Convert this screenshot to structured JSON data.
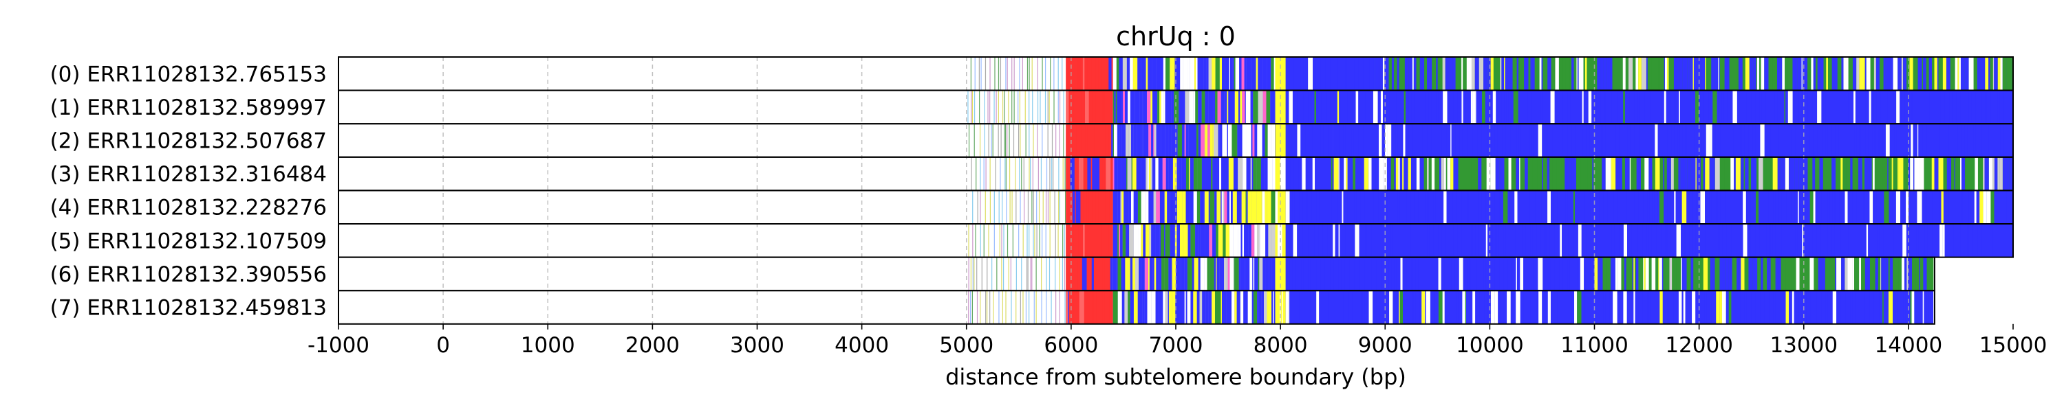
{
  "chart_data": {
    "type": "heatmap",
    "title": "chrUq : 0",
    "xlabel": "distance from subtelomere boundary (bp)",
    "ylabel": "",
    "xlim": [
      -1000,
      15000
    ],
    "xticks": [
      -1000,
      0,
      1000,
      2000,
      3000,
      4000,
      5000,
      6000,
      7000,
      8000,
      9000,
      10000,
      11000,
      12000,
      13000,
      14000,
      15000
    ],
    "grid": "vertical dashed",
    "colors": {
      "blue": "#3333ff",
      "green": "#339933",
      "red": "#ff3333",
      "yellow": "#ffff33",
      "white": "#ffffff",
      "lightgray": "#d0d0d0"
    },
    "reads": [
      {
        "label": "(0) ERR11028132.765153",
        "end": 15000,
        "segments": [
          [
            5000,
            5950,
            "sparse"
          ],
          [
            5950,
            6400,
            "red"
          ],
          [
            6400,
            7950,
            "mix"
          ],
          [
            7950,
            8050,
            "yellow"
          ],
          [
            8050,
            8900,
            "blue"
          ],
          [
            8900,
            14900,
            "greenmix"
          ],
          [
            14900,
            15000,
            "green"
          ]
        ]
      },
      {
        "label": "(1) ERR11028132.589997",
        "end": 15000,
        "segments": [
          [
            5000,
            5950,
            "sparse"
          ],
          [
            5950,
            6400,
            "red"
          ],
          [
            6400,
            7950,
            "mix"
          ],
          [
            7950,
            8050,
            "yellow"
          ],
          [
            8050,
            13000,
            "bluewhite"
          ],
          [
            13000,
            15000,
            "blue"
          ]
        ]
      },
      {
        "label": "(2) ERR11028132.507687",
        "end": 15000,
        "segments": [
          [
            5000,
            5950,
            "sparse"
          ],
          [
            5950,
            6400,
            "red"
          ],
          [
            6400,
            7950,
            "mix"
          ],
          [
            7950,
            8050,
            "yellow"
          ],
          [
            8050,
            8500,
            "blue"
          ],
          [
            8500,
            15000,
            "blue"
          ]
        ]
      },
      {
        "label": "(3) ERR11028132.316484",
        "end": 15000,
        "segments": [
          [
            5000,
            5950,
            "sparse"
          ],
          [
            5950,
            6400,
            "red"
          ],
          [
            6400,
            7950,
            "mix"
          ],
          [
            7950,
            8050,
            "yellow"
          ],
          [
            8050,
            9300,
            "bluemix"
          ],
          [
            9300,
            15000,
            "greenmix"
          ]
        ]
      },
      {
        "label": "(4) ERR11028132.228276",
        "end": 15000,
        "segments": [
          [
            5000,
            5950,
            "sparse"
          ],
          [
            5950,
            6400,
            "red"
          ],
          [
            6400,
            7950,
            "mix"
          ],
          [
            7950,
            8050,
            "yellow"
          ],
          [
            8050,
            10000,
            "blue"
          ],
          [
            10000,
            15000,
            "bluewhite"
          ]
        ]
      },
      {
        "label": "(5) ERR11028132.107509",
        "end": 15000,
        "segments": [
          [
            5000,
            5950,
            "sparse"
          ],
          [
            5950,
            6400,
            "red"
          ],
          [
            6400,
            7950,
            "mix"
          ],
          [
            7950,
            8050,
            "yellow"
          ],
          [
            8050,
            15000,
            "blue"
          ]
        ]
      },
      {
        "label": "(6) ERR11028132.390556",
        "end": 14250,
        "segments": [
          [
            5000,
            5950,
            "sparse"
          ],
          [
            5950,
            6400,
            "red"
          ],
          [
            6400,
            7950,
            "mix"
          ],
          [
            7950,
            8050,
            "yellow"
          ],
          [
            8050,
            11000,
            "blue"
          ],
          [
            11000,
            14250,
            "greenmix"
          ]
        ]
      },
      {
        "label": "(7) ERR11028132.459813",
        "end": 14250,
        "segments": [
          [
            5000,
            5950,
            "sparse"
          ],
          [
            5950,
            6400,
            "red"
          ],
          [
            6400,
            7950,
            "mix"
          ],
          [
            7950,
            8050,
            "yellow"
          ],
          [
            8050,
            14250,
            "bluewhite"
          ]
        ]
      }
    ]
  }
}
